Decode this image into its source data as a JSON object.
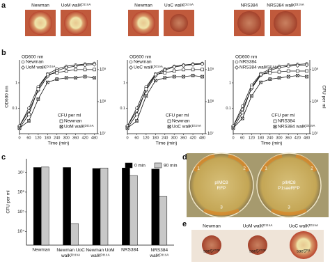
{
  "panel_labels": [
    "a",
    "b",
    "c",
    "d",
    "e"
  ],
  "panel_a": {
    "labels": [
      "Newman",
      "UoM walKᴰ¹¹⁹ᴬ",
      "Newman",
      "UoC walKᴰ¹¹⁹ᴬ",
      "NRS384",
      "NRS384 walKᴰ¹¹⁹ᴬ"
    ]
  },
  "chart_data": [
    {
      "type": "line",
      "x": [
        0,
        60,
        120,
        180,
        240,
        300,
        360,
        420,
        480
      ],
      "xlim": [
        0,
        500
      ],
      "xticks": [
        0,
        60,
        120,
        180,
        240,
        300,
        360,
        420,
        480
      ],
      "xlabel": "Time (min)",
      "ylabel": "OD600 nm",
      "log": true,
      "ylim": [
        0.01,
        8
      ],
      "yticks": [
        0.1,
        1
      ],
      "y2lim": [
        10000000,
        2000000000
      ],
      "y2ticks": [
        {
          "value": 10000000,
          "label": "10⁷"
        },
        {
          "value": 100000000,
          "label": "10⁸"
        },
        {
          "value": 1000000000,
          "label": "10⁹"
        }
      ],
      "y_legend_title": "OD600 nm",
      "y2_legend_title": "CFU per ml",
      "series": [
        {
          "name": "Newman",
          "marker": "circle",
          "values": [
            0.02,
            0.1,
            0.7,
            2.2,
            3.5,
            4.5,
            5,
            5.5,
            5.8
          ]
        },
        {
          "name": "UoM walKᴰ¹¹⁹ᴬ",
          "marker": "diamond",
          "values": [
            0.02,
            0.08,
            0.5,
            1.8,
            3,
            4,
            4.5,
            5,
            5.3
          ]
        },
        {
          "name": "Newman",
          "marker": "square",
          "axis": "y2",
          "values": [
            15000000,
            40000000,
            250000000,
            700000000,
            800000000,
            900000000,
            1000000000,
            1000000000,
            1000000000
          ]
        },
        {
          "name": "UoM walKᴰ¹¹⁹ᴬ",
          "marker": "square-x",
          "axis": "y2",
          "values": [
            15000000,
            25000000,
            120000000,
            400000000,
            500000000,
            550000000,
            550000000,
            600000000,
            550000000
          ]
        }
      ]
    },
    {
      "type": "line",
      "x": [
        0,
        60,
        120,
        180,
        240,
        300,
        360,
        420,
        480
      ],
      "xlim": [
        0,
        500
      ],
      "xticks": [
        0,
        60,
        120,
        180,
        240,
        300,
        360,
        420,
        480
      ],
      "xlabel": "Time (min)",
      "log": true,
      "ylim": [
        0.01,
        8
      ],
      "yticks": [
        0.1,
        1
      ],
      "y2lim": [
        10000000,
        2000000000
      ],
      "y2ticks": [
        {
          "value": 10000000,
          "label": "10⁷"
        },
        {
          "value": 100000000,
          "label": "10⁸"
        },
        {
          "value": 1000000000,
          "label": "10⁹"
        }
      ],
      "y_legend_title": "OD600 nm",
      "y2_legend_title": "CFU per ml",
      "series": [
        {
          "name": "Newman",
          "marker": "circle",
          "values": [
            0.02,
            0.1,
            0.7,
            2.2,
            3.5,
            4.5,
            5,
            5.5,
            5.8
          ]
        },
        {
          "name": "UoC walKᴰ¹¹⁹ᴬ",
          "marker": "diamond",
          "values": [
            0.02,
            0.08,
            0.5,
            1.9,
            3.2,
            4.2,
            4.8,
            5.2,
            5.5
          ]
        },
        {
          "name": "Newman",
          "marker": "square",
          "axis": "y2",
          "values": [
            15000000,
            40000000,
            250000000,
            700000000,
            800000000,
            900000000,
            1000000000,
            1000000000,
            1000000000
          ]
        },
        {
          "name": "UoC walKᴰ¹¹⁹ᴬ",
          "marker": "square-x",
          "axis": "y2",
          "values": [
            15000000,
            25000000,
            150000000,
            450000000,
            550000000,
            600000000,
            600000000,
            650000000,
            600000000
          ]
        }
      ]
    },
    {
      "type": "line",
      "x": [
        0,
        60,
        120,
        180,
        240,
        300,
        360,
        420,
        480
      ],
      "xlim": [
        0,
        500
      ],
      "xticks": [
        0,
        60,
        120,
        180,
        240,
        300,
        360,
        420,
        480
      ],
      "xlabel": "Time (min)",
      "y2label": "CFU per ml",
      "log": true,
      "ylim": [
        0.01,
        8
      ],
      "yticks": [
        0.1,
        1
      ],
      "y2lim": [
        10000000,
        2000000000
      ],
      "y2ticks": [
        {
          "value": 10000000,
          "label": "10⁷"
        },
        {
          "value": 100000000,
          "label": "10⁸"
        },
        {
          "value": 1000000000,
          "label": "10⁹"
        }
      ],
      "y_legend_title": "OD600 nm",
      "y2_legend_title": "CFU per ml",
      "series": [
        {
          "name": "NRS384",
          "marker": "circle",
          "values": [
            0.02,
            0.12,
            0.8,
            2.3,
            3.5,
            4.5,
            5,
            5.3,
            5.6
          ]
        },
        {
          "name": "NRS384 walKᴰ¹¹⁹ᴬ",
          "marker": "diamond",
          "values": [
            0.02,
            0.09,
            0.6,
            2,
            3.1,
            4,
            4.5,
            4.8,
            5
          ]
        },
        {
          "name": "NRS384",
          "marker": "square",
          "axis": "y2",
          "values": [
            15000000,
            45000000,
            280000000,
            700000000,
            800000000,
            850000000,
            900000000,
            900000000,
            900000000
          ]
        },
        {
          "name": "NRS384 walKᴰ¹¹⁹ᴬ",
          "marker": "square-x",
          "axis": "y2",
          "values": [
            15000000,
            30000000,
            150000000,
            400000000,
            500000000,
            550000000,
            600000000,
            650000000,
            600000000
          ]
        }
      ]
    },
    {
      "type": "bar",
      "ylabel": "CFU per ml",
      "log": true,
      "ylim": [
        2000,
        50000000
      ],
      "yticks": [
        {
          "value": 10000,
          "label": "10⁴"
        },
        {
          "value": 100000,
          "label": "10⁵"
        },
        {
          "value": 1000000,
          "label": "10⁶"
        },
        {
          "value": 10000000,
          "label": "10⁷"
        }
      ],
      "categories": [
        "Newman",
        "Newman UoC walKᴰ¹¹⁹ᴬ",
        "Newman UoM walKᴰ¹¹⁹ᴬ",
        "NRS384",
        "NRS384 walKᴰ¹¹⁹ᴬ"
      ],
      "series": [
        {
          "name": "0 min",
          "color": "#000000",
          "values": [
            18000000,
            18000000,
            16000000,
            17000000,
            15000000
          ]
        },
        {
          "name": "90 min",
          "color": "#c8c8c8",
          "values": [
            19000000,
            25000,
            17000000,
            7000000,
            600000
          ]
        }
      ]
    }
  ],
  "panel_d": {
    "plates": [
      {
        "label": "pIMC8 RFP",
        "regions": [
          "1",
          "2",
          "3"
        ]
      },
      {
        "label": "pIMC8 P1saeRFP",
        "regions": [
          "1",
          "2",
          "3"
        ]
      }
    ]
  },
  "panel_e": {
    "labels": [
      "Newman",
      "UoM walKᴰ¹¹⁹ᴬ",
      "UoC walKᴰ¹¹⁹ᴬ"
    ],
    "inner": [
      "saeSˢᵀᴼᴾ",
      "saeSˢᵀᴼᴾ",
      "saeSᴾ/ᴸ"
    ]
  }
}
